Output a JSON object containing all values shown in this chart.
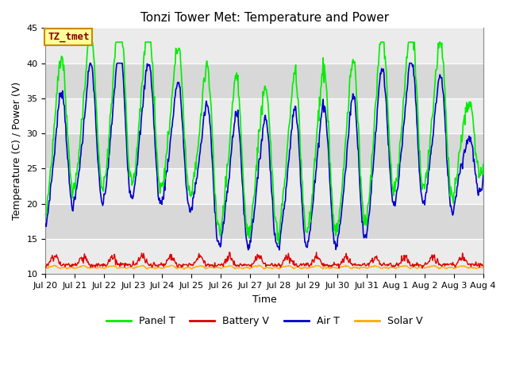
{
  "title": "Tonzi Tower Met: Temperature and Power",
  "xlabel": "Time",
  "ylabel": "Temperature (C) / Power (V)",
  "ylim": [
    10,
    45
  ],
  "yticks": [
    10,
    15,
    20,
    25,
    30,
    35,
    40,
    45
  ],
  "tz_label": "TZ_tmet",
  "legend_entries": [
    "Panel T",
    "Battery V",
    "Air T",
    "Solar V"
  ],
  "panel_t_color": "#00ee00",
  "battery_v_color": "#dd0000",
  "air_t_color": "#0000cc",
  "solar_v_color": "#ffaa00",
  "background_color": "#ffffff",
  "plot_bg_color": "#ffffff",
  "band_color_light": "#ebebeb",
  "band_color_dark": "#d8d8d8",
  "n_days": 15,
  "points_per_day": 48,
  "x_tick_labels": [
    "Jul 20",
    "Jul 21",
    "Jul 22",
    "Jul 23",
    "Jul 24",
    "Jul 25",
    "Jul 26",
    "Jul 27",
    "Jul 28",
    "Jul 29",
    "Jul 30",
    "Jul 31",
    "Aug 1",
    "Aug 2",
    "Aug 3",
    "Aug 4"
  ],
  "x_tick_positions": [
    0,
    1,
    2,
    3,
    4,
    5,
    6,
    7,
    8,
    9,
    10,
    11,
    12,
    13,
    14,
    15
  ]
}
